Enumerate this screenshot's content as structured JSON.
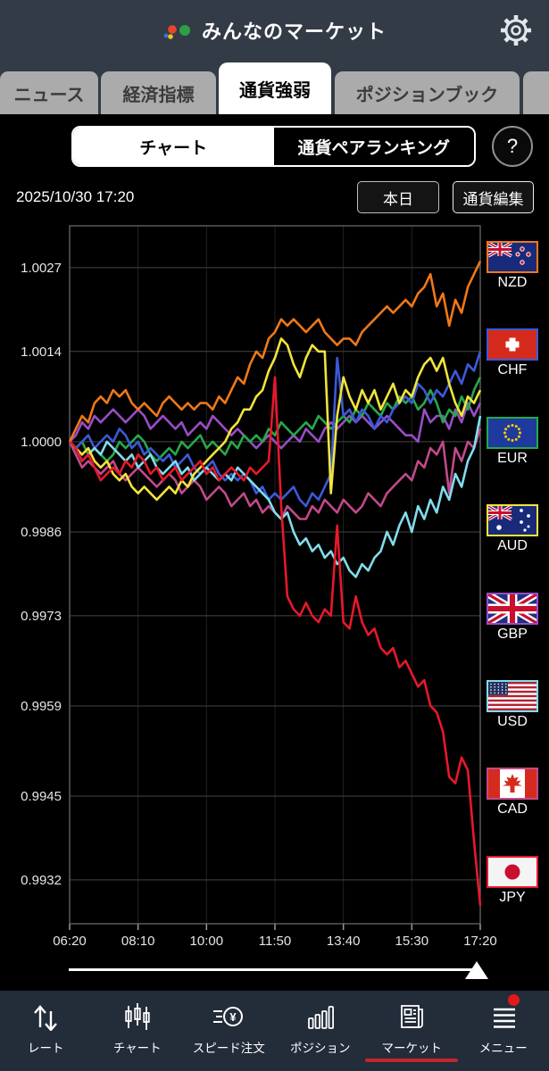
{
  "header": {
    "title": "みんなのマーケット"
  },
  "tabs": [
    {
      "label": "ニュース",
      "active": false
    },
    {
      "label": "経済指標",
      "active": false
    },
    {
      "label": "通貨強弱",
      "active": true
    },
    {
      "label": "ポジションブック",
      "active": false
    },
    {
      "label": "",
      "active": false
    }
  ],
  "view_toggle": {
    "left": "チャート",
    "right": "通貨ペアランキング",
    "help": "?"
  },
  "toolbar": {
    "datetime": "2025/10/30 17:20",
    "today_button": "本日",
    "edit_button": "通貨編集"
  },
  "chart_data": {
    "type": "line",
    "x_labels": [
      "06:20",
      "08:10",
      "10:00",
      "11:50",
      "13:40",
      "15:30",
      "17:20"
    ],
    "y_labels": [
      1.0027,
      1.0014,
      1.0,
      0.9986,
      0.9973,
      0.9959,
      0.9945,
      0.9932
    ],
    "ylim": [
      0.99252,
      1.00335
    ],
    "series": [
      {
        "name": "NZD",
        "color": "#f07818",
        "values": [
          1.0,
          1.0002,
          1.0004,
          1.0003,
          1.0006,
          1.0007,
          1.0006,
          1.0008,
          1.0007,
          1.0008,
          1.0006,
          1.0005,
          1.0006,
          1.0005,
          1.0004,
          1.0006,
          1.0007,
          1.0006,
          1.0005,
          1.0006,
          1.0005,
          1.0006,
          1.0006,
          1.0005,
          1.0007,
          1.0006,
          1.0008,
          1.001,
          1.0009,
          1.0012,
          1.0014,
          1.0013,
          1.0016,
          1.0017,
          1.0019,
          1.0018,
          1.0019,
          1.0018,
          1.0017,
          1.0018,
          1.0019,
          1.0017,
          1.0016,
          1.0015,
          1.0016,
          1.0016,
          1.0015,
          1.0017,
          1.0018,
          1.0019,
          1.002,
          1.0021,
          1.002,
          1.0021,
          1.0022,
          1.0021,
          1.0023,
          1.0024,
          1.0026,
          1.0021,
          1.0023,
          1.0018,
          1.0022,
          1.002,
          1.0024,
          1.0026,
          1.0028
        ]
      },
      {
        "name": "CHF",
        "color": "#3c59d8",
        "values": [
          1.0,
          0.9999,
          1.0,
          1.0001,
          0.9999,
          1.0,
          1.0001,
          1.0,
          1.0002,
          1.0001,
          0.9999,
          1.0,
          0.9998,
          0.9999,
          0.9998,
          0.9997,
          0.9998,
          0.9996,
          0.9997,
          0.9998,
          0.9996,
          0.9995,
          0.9996,
          0.9997,
          0.9995,
          0.9994,
          0.9995,
          0.9994,
          0.9995,
          0.9994,
          0.9992,
          0.9993,
          0.9991,
          0.9992,
          0.9991,
          0.9992,
          0.9993,
          0.9991,
          0.999,
          0.9992,
          0.9991,
          0.9993,
          0.9995,
          1.0013,
          1.0004,
          1.0005,
          1.0003,
          1.0005,
          1.0004,
          1.0002,
          1.0004,
          1.0003,
          1.0005,
          1.0006,
          1.0007,
          1.0006,
          1.0009,
          1.0008,
          1.0006,
          1.0008,
          1.0007,
          1.0009,
          1.0011,
          1.0009,
          1.0012,
          1.0011,
          1.0014
        ]
      },
      {
        "name": "EUR",
        "color": "#27a84c",
        "values": [
          1.0,
          0.9999,
          1.0,
          0.9998,
          0.9999,
          0.9998,
          0.9997,
          0.9998,
          1.0,
          0.9999,
          1.0,
          1.0001,
          1.0,
          0.9998,
          0.9997,
          0.9998,
          0.9999,
          0.9998,
          1.0,
          0.9999,
          1.0,
          1.0001,
          0.9999,
          1.0,
          0.9999,
          0.9998,
          1.0,
          0.9999,
          1.0001,
          1.0,
          1.0001,
          1.0,
          1.0002,
          1.0001,
          1.0003,
          1.0002,
          1.0001,
          1.0002,
          1.0003,
          1.0002,
          1.0004,
          1.0003,
          1.0002,
          1.0003,
          1.0004,
          1.0003,
          1.0005,
          1.0004,
          1.0006,
          1.0005,
          1.0004,
          1.0006,
          1.0005,
          1.0007,
          1.0006,
          1.0007,
          1.0005,
          1.0006,
          1.0008,
          1.0006,
          1.0003,
          1.0005,
          1.0004,
          1.0007,
          1.0005,
          1.0008,
          1.001
        ]
      },
      {
        "name": "AUD",
        "color": "#f2e43c",
        "values": [
          1.0,
          0.9999,
          0.9998,
          0.9999,
          0.9997,
          0.9996,
          0.9997,
          0.9995,
          0.9994,
          0.9995,
          0.9993,
          0.9992,
          0.9993,
          0.9992,
          0.9991,
          0.9992,
          0.9993,
          0.9992,
          0.9994,
          0.9993,
          0.9995,
          0.9996,
          0.9997,
          0.9998,
          0.9999,
          1.0,
          1.0002,
          1.0003,
          1.0005,
          1.0005,
          1.0007,
          1.0008,
          1.0011,
          1.0013,
          1.0016,
          1.0015,
          1.0012,
          1.001,
          1.0013,
          1.0015,
          1.0014,
          1.0014,
          0.9992,
          1.0004,
          1.001,
          1.0007,
          1.0005,
          1.0008,
          1.0006,
          1.0008,
          1.0005,
          1.0007,
          1.0009,
          1.0006,
          1.0008,
          1.0007,
          1.001,
          1.0012,
          1.0013,
          1.0011,
          1.0013,
          1.0009,
          1.0006,
          1.0004,
          1.0007,
          1.0006,
          1.0008
        ]
      },
      {
        "name": "GBP",
        "color": "#9a4cc8",
        "values": [
          1.0,
          1.0001,
          1.0003,
          1.0002,
          1.0004,
          1.0003,
          1.0004,
          1.0005,
          1.0004,
          1.0003,
          1.0004,
          1.0005,
          1.0004,
          1.0002,
          1.0003,
          1.0004,
          1.0003,
          1.0002,
          1.0003,
          1.0001,
          1.0002,
          1.0003,
          1.0002,
          1.0004,
          1.0003,
          1.0002,
          1.0001,
          1.0002,
          1.0001,
          1.0,
          0.9999,
          1.0,
          1.0001,
          1.0,
          0.9999,
          1.0,
          1.0001,
          1.0,
          1.0002,
          1.0001,
          1.0,
          1.0002,
          1.0003,
          1.0002,
          1.0003,
          1.0004,
          1.0003,
          1.0004,
          1.0003,
          1.0002,
          1.0003,
          1.0004,
          1.0003,
          1.0002,
          1.0001,
          1.0001,
          1.0,
          1.0005,
          1.0003,
          1.0004,
          1.0004,
          1.0002,
          1.0005,
          1.0003,
          1.0006,
          1.0004,
          1.0006
        ]
      },
      {
        "name": "USD",
        "color": "#82dcec",
        "values": [
          1.0,
          0.9999,
          0.9997,
          0.9998,
          0.9999,
          0.9998,
          1.0,
          0.9999,
          0.9998,
          0.9997,
          0.9998,
          0.9996,
          0.9997,
          0.9998,
          0.9996,
          0.9995,
          0.9996,
          0.9997,
          0.9995,
          0.9996,
          0.9994,
          0.9995,
          0.9996,
          0.9995,
          0.9994,
          0.9995,
          0.9994,
          0.9996,
          0.9995,
          0.9994,
          0.9993,
          0.9992,
          0.9991,
          0.9989,
          0.9988,
          0.9989,
          0.9986,
          0.9984,
          0.9985,
          0.9983,
          0.9984,
          0.9982,
          0.9983,
          0.9981,
          0.9982,
          0.998,
          0.9979,
          0.9981,
          0.998,
          0.9982,
          0.9983,
          0.9986,
          0.9984,
          0.9987,
          0.9989,
          0.9986,
          0.999,
          0.9988,
          0.9991,
          0.9989,
          0.9993,
          0.9991,
          0.9995,
          0.9993,
          0.9997,
          0.9999,
          1.0004
        ]
      },
      {
        "name": "CAD",
        "color": "#c2498a",
        "values": [
          1.0,
          0.9998,
          0.9996,
          0.9997,
          0.9996,
          0.9995,
          0.9996,
          0.9997,
          0.9995,
          0.9994,
          0.9995,
          0.9996,
          0.9995,
          0.9994,
          0.9993,
          0.9994,
          0.9995,
          0.9994,
          0.9992,
          0.9993,
          0.9994,
          0.9993,
          0.9991,
          0.9992,
          0.9993,
          0.9992,
          0.999,
          0.9991,
          0.9992,
          0.999,
          0.9991,
          0.9989,
          0.999,
          0.9989,
          0.9988,
          0.999,
          0.9989,
          0.9988,
          0.9988,
          0.999,
          0.9989,
          0.9991,
          0.999,
          0.9989,
          0.9991,
          0.999,
          0.9989,
          0.999,
          0.9992,
          0.9991,
          0.999,
          0.9992,
          0.9993,
          0.9994,
          0.9995,
          0.9994,
          0.9997,
          0.9996,
          0.9999,
          0.9998,
          1.0,
          0.9992,
          0.9999,
          0.9997,
          1.0,
          0.9999,
          1.0002
        ]
      },
      {
        "name": "JPY",
        "color": "#e6192a",
        "values": [
          1.0,
          0.9999,
          0.9997,
          0.9998,
          0.9996,
          0.9994,
          0.9995,
          0.9996,
          0.9995,
          0.9997,
          0.9996,
          0.9998,
          0.9997,
          0.9995,
          0.9996,
          0.9994,
          0.9995,
          0.9996,
          0.9994,
          0.9995,
          0.9996,
          0.9997,
          0.9995,
          0.9996,
          0.9994,
          0.9995,
          0.9996,
          0.9995,
          0.9994,
          0.9996,
          0.9995,
          0.9996,
          0.9997,
          1.001,
          0.999,
          0.9976,
          0.9974,
          0.9973,
          0.9975,
          0.9973,
          0.9972,
          0.9974,
          0.9973,
          0.9987,
          0.9972,
          0.9971,
          0.9976,
          0.9972,
          0.997,
          0.9971,
          0.9968,
          0.9967,
          0.9968,
          0.9965,
          0.9966,
          0.9964,
          0.9962,
          0.9963,
          0.9959,
          0.9958,
          0.9955,
          0.9948,
          0.9947,
          0.9951,
          0.9949,
          0.9938,
          0.9928
        ]
      }
    ]
  },
  "bottom_nav": [
    {
      "label": "レート",
      "icon": "rate-arrows-icon",
      "active": false,
      "badge": false
    },
    {
      "label": "チャート",
      "icon": "candlestick-icon",
      "active": false,
      "badge": false
    },
    {
      "label": "スピード注文",
      "icon": "speed-order-icon",
      "active": false,
      "badge": false
    },
    {
      "label": "ポジション",
      "icon": "position-bars-icon",
      "active": false,
      "badge": false
    },
    {
      "label": "マーケット",
      "icon": "market-news-icon",
      "active": true,
      "badge": false
    },
    {
      "label": "メニュー",
      "icon": "menu-lines-icon",
      "active": false,
      "badge": true
    }
  ]
}
